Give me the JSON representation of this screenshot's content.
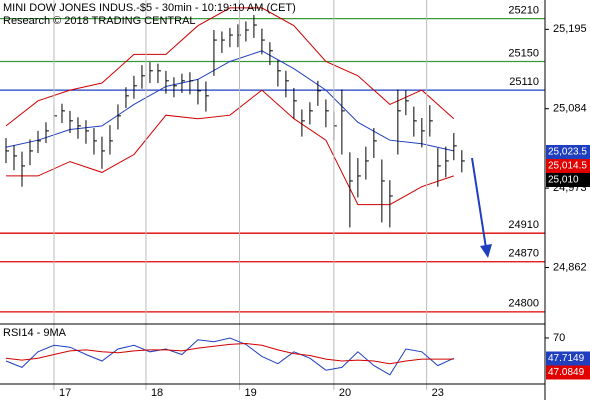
{
  "chart_data": [
    {
      "type": "ohlc",
      "title": "MINI DOW JONES INDUS.-$5 - 30min - 10:19:10 AM (CET)",
      "subtitle": "Research © 2018 TRADING CENTRAL",
      "xlim": [
        -0.75,
        67.4
      ],
      "ylim": [
        24783,
        25236
      ],
      "yticks": [
        {
          "value": 25195,
          "label": "25,195"
        },
        {
          "value": 25084,
          "label": "25,084"
        },
        {
          "value": 24973,
          "label": "24,973"
        },
        {
          "value": 24862,
          "label": "24,862"
        }
      ],
      "color": "#000000",
      "high": [
        25043,
        25033,
        25024,
        25041,
        25053,
        25065,
        25089,
        25091,
        25081,
        25072,
        25068,
        25057,
        25045,
        25061,
        25090,
        25114,
        25130,
        25145,
        25149,
        25147,
        25137,
        25128,
        25133,
        25135,
        25125,
        25122,
        25194,
        25192,
        25197,
        25202,
        25206,
        25215,
        25196,
        25177,
        25152,
        25137,
        25113,
        25083,
        25093,
        25123,
        25097,
        25080,
        25111,
        25023,
        25015,
        25031,
        25057,
        25013,
        24984,
        25111,
        25110,
        25087,
        25071,
        25089,
        25029,
        25031,
        25050,
        25026
      ],
      "low": [
        25008,
        24998,
        24975,
        25005,
        25022,
        25036,
        25058,
        25064,
        25050,
        25042,
        25035,
        25020,
        25000,
        25020,
        25055,
        25085,
        25098,
        25112,
        25120,
        25120,
        25105,
        25100,
        25106,
        25104,
        25090,
        25080,
        25130,
        25162,
        25170,
        25170,
        25178,
        25183,
        25160,
        25145,
        25115,
        25100,
        25070,
        25045,
        25062,
        25088,
        25058,
        25040,
        25020,
        24918,
        24960,
        24985,
        25015,
        24925,
        24918,
        25020,
        25075,
        25045,
        25030,
        25045,
        24975,
        24988,
        25012,
        24995
      ],
      "close": [
        25025,
        25018,
        25004,
        25025,
        25039,
        25053,
        25074,
        25081,
        25067,
        25060,
        25053,
        25039,
        25025,
        25039,
        25074,
        25102,
        25116,
        25130,
        25137,
        25137,
        25123,
        25116,
        25123,
        25123,
        25109,
        25102,
        25180,
        25180,
        25187,
        25187,
        25194,
        25201,
        25180,
        25165,
        25137,
        25123,
        25095,
        25067,
        25081,
        25109,
        25081,
        25060,
        25081,
        24983,
        24990,
        25011,
        25039,
        24983,
        24962,
        25081,
        25095,
        25067,
        25053,
        25067,
        25004,
        25011,
        25032,
        25011
      ],
      "bands": {
        "x": [
          0,
          4,
          8,
          12,
          16,
          20,
          24,
          28,
          32,
          36,
          40,
          44,
          48,
          52,
          56
        ],
        "upper": [
          25060,
          25095,
          25110,
          25120,
          25160,
          25160,
          25200,
          25225,
          25225,
          25200,
          25150,
          25130,
          25090,
          25110,
          25070
        ],
        "middle": [
          25030,
          25040,
          25055,
          25060,
          25090,
          25115,
          25125,
          25150,
          25165,
          25140,
          25110,
          25065,
          25040,
          25035,
          25025
        ],
        "lower": [
          24990,
          24990,
          25010,
          24995,
          25020,
          25075,
          25070,
          25075,
          25110,
          25070,
          25040,
          24950,
          24950,
          24975,
          24990
        ],
        "band_color": "#d00000",
        "middle_color": "#1f3fbf"
      },
      "levels": [
        {
          "value": 25210,
          "color": "#3a9a3a"
        },
        {
          "value": 25150,
          "color": "#3a9a3a"
        },
        {
          "value": 25110,
          "color": "#1f3fbf"
        },
        {
          "value": 24910,
          "color": "#e00000"
        },
        {
          "value": 24870,
          "color": "#e00000"
        },
        {
          "value": 24800,
          "color": "#e00000"
        }
      ],
      "price_tags": [
        {
          "value": 25023.5,
          "label": "25,023.5",
          "color": "#1f3fbf"
        },
        {
          "value": 25014.5,
          "label": "25,014.5",
          "color": "#e00000"
        },
        {
          "value": 25010,
          "label": "25,010",
          "color": "#000000"
        }
      ]
    },
    {
      "type": "line",
      "title": "RSI14 - 9MA",
      "xlim": [
        -0.75,
        67.4
      ],
      "ylim": [
        20,
        83
      ],
      "yticks": [
        70
      ],
      "xticks": [
        {
          "value": 6,
          "label": "17"
        },
        {
          "value": 17.5,
          "label": "18"
        },
        {
          "value": 29.2,
          "label": "19"
        },
        {
          "value": 41,
          "label": "20"
        },
        {
          "value": 52.6,
          "label": "23"
        }
      ],
      "x": [
        0,
        2,
        4,
        6,
        8,
        10,
        12,
        14,
        16,
        18,
        20,
        22,
        24,
        26,
        28,
        30,
        32,
        34,
        36,
        38,
        40,
        42,
        44,
        46,
        48,
        50,
        52,
        54,
        56
      ],
      "series": [
        {
          "color": "#1f3fbf",
          "values": [
            45,
            38,
            55,
            62,
            60,
            52,
            45,
            58,
            62,
            55,
            58,
            52,
            68,
            66,
            70,
            63,
            50,
            42,
            55,
            48,
            35,
            38,
            55,
            40,
            30,
            58,
            55,
            40,
            48
          ]
        },
        {
          "color": "#d00000",
          "values": [
            48,
            46,
            48,
            52,
            56,
            57,
            55,
            54,
            56,
            57,
            57,
            56,
            59,
            61,
            63,
            64,
            62,
            57,
            53,
            51,
            47,
            45,
            46,
            45,
            42,
            45,
            47,
            47,
            47
          ]
        }
      ],
      "price_tags": [
        {
          "value": 47.7149,
          "label": "47.7149",
          "color": "#1f3fbf"
        },
        {
          "value": 47.0849,
          "label": "47.0849",
          "color": "#e00000"
        }
      ]
    }
  ]
}
